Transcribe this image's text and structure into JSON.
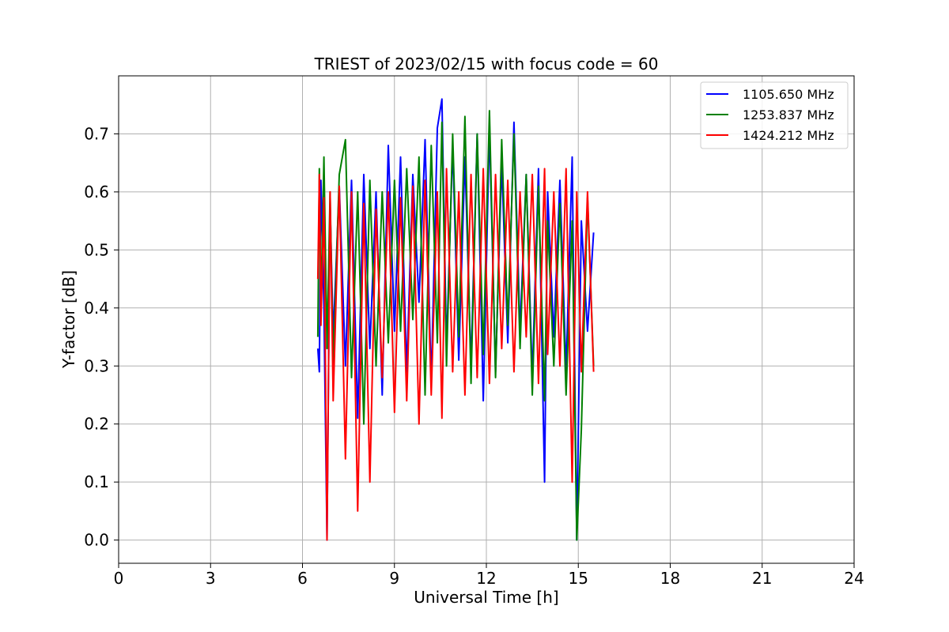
{
  "chart_data": {
    "type": "line",
    "title": "TRIEST of 2023/02/15 with focus code = 60",
    "xlabel": "Universal Time [h]",
    "ylabel": "Y-factor [dB]",
    "xlim": [
      0,
      24
    ],
    "ylim": [
      -0.04,
      0.8
    ],
    "x_ticks": [
      0,
      3,
      6,
      9,
      12,
      15,
      18,
      21,
      24
    ],
    "x_tick_labels": [
      "0",
      "3",
      "6",
      "9",
      "12",
      "15",
      "18",
      "21",
      "24"
    ],
    "y_ticks": [
      0.0,
      0.1,
      0.2,
      0.3,
      0.4,
      0.5,
      0.6,
      0.7
    ],
    "y_tick_labels": [
      "0.0",
      "0.1",
      "0.2",
      "0.3",
      "0.4",
      "0.5",
      "0.6",
      "0.7"
    ],
    "grid": true,
    "legend_position": "top-right",
    "series": [
      {
        "name": "1105.650 MHz",
        "color": "#0000ff",
        "x": [
          6.5,
          6.55,
          6.6,
          6.7,
          6.8,
          6.9,
          7.0,
          7.2,
          7.4,
          7.6,
          7.8,
          8.0,
          8.2,
          8.4,
          8.6,
          8.8,
          9.0,
          9.2,
          9.4,
          9.6,
          9.8,
          10.0,
          10.2,
          10.4,
          10.55,
          10.7,
          10.9,
          11.1,
          11.3,
          11.5,
          11.7,
          11.9,
          12.1,
          12.3,
          12.5,
          12.7,
          12.9,
          13.1,
          13.3,
          13.5,
          13.7,
          13.9,
          14.0,
          14.2,
          14.4,
          14.6,
          14.8,
          14.95,
          15.1,
          15.3,
          15.5
        ],
        "values": [
          0.33,
          0.29,
          0.62,
          0.4,
          0.0,
          0.58,
          0.35,
          0.61,
          0.3,
          0.62,
          0.21,
          0.63,
          0.33,
          0.6,
          0.25,
          0.68,
          0.36,
          0.66,
          0.29,
          0.63,
          0.41,
          0.69,
          0.27,
          0.71,
          0.76,
          0.33,
          0.68,
          0.31,
          0.66,
          0.3,
          0.7,
          0.24,
          0.71,
          0.29,
          0.65,
          0.34,
          0.72,
          0.36,
          0.63,
          0.28,
          0.64,
          0.1,
          0.6,
          0.35,
          0.62,
          0.29,
          0.66,
          0.0,
          0.55,
          0.36,
          0.53
        ]
      },
      {
        "name": "1253.837 MHz",
        "color": "#008000",
        "x": [
          6.5,
          6.55,
          6.6,
          6.7,
          6.8,
          6.9,
          7.0,
          7.2,
          7.4,
          7.6,
          7.8,
          8.0,
          8.2,
          8.4,
          8.6,
          8.8,
          9.0,
          9.2,
          9.4,
          9.6,
          9.8,
          10.0,
          10.2,
          10.4,
          10.55,
          10.7,
          10.9,
          11.1,
          11.3,
          11.5,
          11.7,
          11.9,
          12.1,
          12.3,
          12.5,
          12.7,
          12.9,
          13.1,
          13.3,
          13.5,
          13.7,
          13.9,
          14.0,
          14.2,
          14.4,
          14.6,
          14.8,
          14.95,
          15.1,
          15.3,
          15.5
        ],
        "values": [
          0.35,
          0.64,
          0.4,
          0.66,
          0.33,
          0.6,
          0.3,
          0.63,
          0.69,
          0.28,
          0.6,
          0.2,
          0.62,
          0.3,
          0.6,
          0.34,
          0.62,
          0.36,
          0.64,
          0.38,
          0.66,
          0.25,
          0.68,
          0.34,
          0.72,
          0.3,
          0.7,
          0.35,
          0.73,
          0.27,
          0.7,
          0.32,
          0.74,
          0.28,
          0.69,
          0.37,
          0.7,
          0.33,
          0.63,
          0.25,
          0.61,
          0.24,
          0.55,
          0.3,
          0.58,
          0.25,
          0.55,
          0.0,
          0.19,
          0.59,
          0.3
        ]
      },
      {
        "name": "1424.212 MHz",
        "color": "#ff0000",
        "x": [
          6.5,
          6.55,
          6.6,
          6.7,
          6.8,
          6.9,
          7.0,
          7.2,
          7.4,
          7.6,
          7.8,
          8.0,
          8.2,
          8.4,
          8.6,
          8.8,
          9.0,
          9.2,
          9.4,
          9.6,
          9.8,
          10.0,
          10.2,
          10.4,
          10.55,
          10.7,
          10.9,
          11.1,
          11.3,
          11.5,
          11.7,
          11.9,
          12.1,
          12.3,
          12.5,
          12.7,
          12.9,
          13.1,
          13.3,
          13.5,
          13.7,
          13.9,
          14.0,
          14.2,
          14.4,
          14.6,
          14.8,
          14.95,
          15.1,
          15.3,
          15.5
        ],
        "values": [
          0.45,
          0.63,
          0.37,
          0.59,
          0.0,
          0.6,
          0.24,
          0.61,
          0.14,
          0.6,
          0.05,
          0.58,
          0.1,
          0.57,
          0.28,
          0.6,
          0.22,
          0.59,
          0.24,
          0.61,
          0.2,
          0.62,
          0.25,
          0.6,
          0.21,
          0.64,
          0.29,
          0.6,
          0.25,
          0.63,
          0.28,
          0.64,
          0.27,
          0.63,
          0.33,
          0.62,
          0.29,
          0.6,
          0.35,
          0.63,
          0.27,
          0.64,
          0.32,
          0.6,
          0.3,
          0.64,
          0.1,
          0.6,
          0.29,
          0.6,
          0.29
        ]
      }
    ]
  }
}
